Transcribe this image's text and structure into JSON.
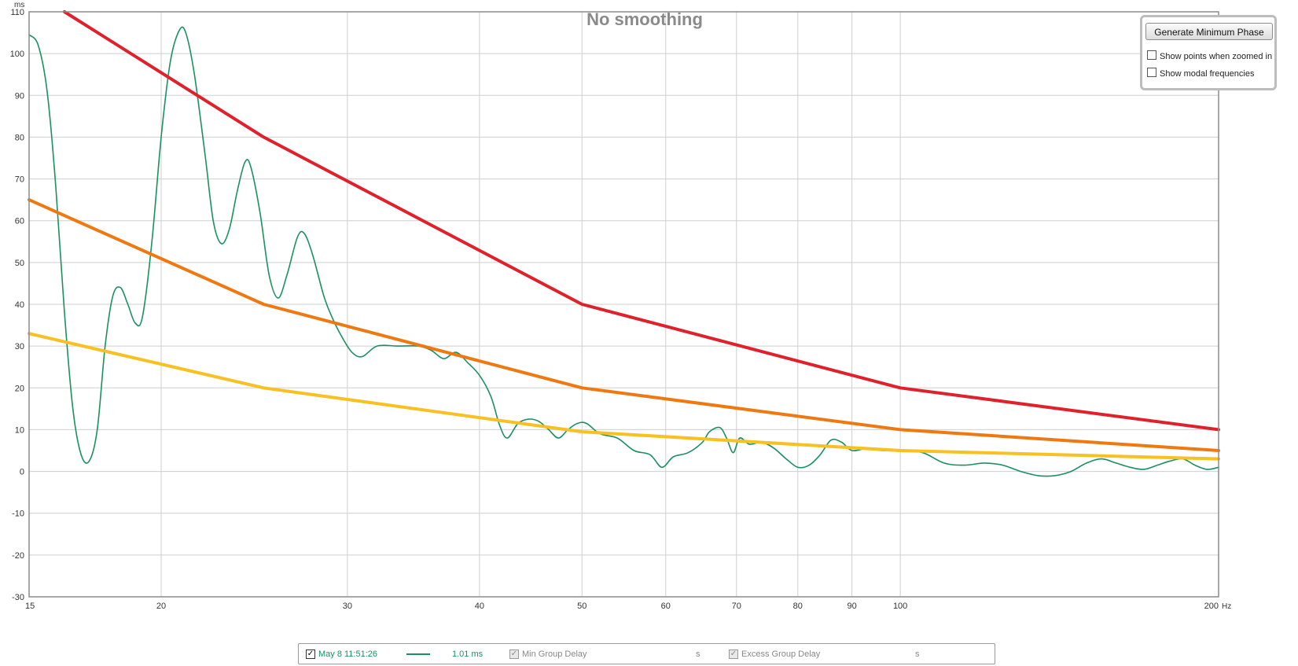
{
  "chart_data": {
    "type": "line",
    "title": "No smoothing",
    "y_unit": "ms",
    "x_unit": "Hz",
    "x_scale": "log",
    "xlim": [
      15,
      200
    ],
    "ylim": [
      -30,
      110
    ],
    "x_ticks": [
      15,
      20,
      30,
      40,
      50,
      60,
      70,
      80,
      90,
      100,
      200
    ],
    "y_ticks": [
      -30,
      -20,
      -10,
      0,
      10,
      20,
      30,
      40,
      50,
      60,
      70,
      80,
      90,
      100,
      110
    ],
    "grid": true,
    "series": [
      {
        "name": "May 8 11:51:26",
        "role": "group delay",
        "color": "#1a9160",
        "points": [
          [
            15,
            104.5
          ],
          [
            15.3,
            102
          ],
          [
            15.6,
            91
          ],
          [
            15.9,
            68
          ],
          [
            16.2,
            38
          ],
          [
            16.5,
            15
          ],
          [
            16.8,
            4
          ],
          [
            17.1,
            2.5
          ],
          [
            17.4,
            10
          ],
          [
            17.7,
            30
          ],
          [
            18.0,
            42
          ],
          [
            18.3,
            44
          ],
          [
            18.6,
            40
          ],
          [
            18.9,
            35.5
          ],
          [
            19.2,
            37
          ],
          [
            19.6,
            55
          ],
          [
            20.0,
            80
          ],
          [
            20.4,
            98
          ],
          [
            20.8,
            105.5
          ],
          [
            21.1,
            105
          ],
          [
            21.5,
            95
          ],
          [
            22.0,
            76
          ],
          [
            22.4,
            60
          ],
          [
            22.8,
            54.5
          ],
          [
            23.2,
            58
          ],
          [
            23.6,
            67
          ],
          [
            24.0,
            74
          ],
          [
            24.3,
            73
          ],
          [
            24.8,
            62
          ],
          [
            25.3,
            47
          ],
          [
            25.8,
            41.5
          ],
          [
            26.3,
            47
          ],
          [
            26.9,
            56
          ],
          [
            27.3,
            57
          ],
          [
            27.8,
            52
          ],
          [
            28.5,
            42
          ],
          [
            29.0,
            37
          ],
          [
            29.6,
            32.5
          ],
          [
            30.3,
            28.5
          ],
          [
            31.0,
            27.5
          ],
          [
            32.0,
            30
          ],
          [
            33.5,
            30
          ],
          [
            35.0,
            30
          ],
          [
            36.0,
            29
          ],
          [
            37.0,
            27
          ],
          [
            38.0,
            28.5
          ],
          [
            39.0,
            26
          ],
          [
            40.0,
            23
          ],
          [
            41.0,
            18
          ],
          [
            41.8,
            11
          ],
          [
            42.5,
            8
          ],
          [
            43.5,
            11.5
          ],
          [
            44.5,
            12.5
          ],
          [
            45.5,
            12
          ],
          [
            46.5,
            10
          ],
          [
            47.5,
            8
          ],
          [
            48.5,
            10
          ],
          [
            49.5,
            11.5
          ],
          [
            50.5,
            11.5
          ],
          [
            52,
            9
          ],
          [
            54,
            8
          ],
          [
            56,
            5
          ],
          [
            58,
            4
          ],
          [
            59.5,
            1
          ],
          [
            61,
            3.5
          ],
          [
            63,
            4.5
          ],
          [
            65,
            7
          ],
          [
            66,
            9.5
          ],
          [
            67.5,
            10.5
          ],
          [
            68.5,
            8
          ],
          [
            69.5,
            4.5
          ],
          [
            70.5,
            8
          ],
          [
            72,
            6.5
          ],
          [
            74,
            7
          ],
          [
            76,
            5.5
          ],
          [
            78,
            3
          ],
          [
            80,
            1
          ],
          [
            82,
            1.5
          ],
          [
            84,
            4
          ],
          [
            86,
            7.5
          ],
          [
            88,
            7
          ],
          [
            90,
            5
          ],
          [
            93,
            5.5
          ],
          [
            96,
            5
          ],
          [
            100,
            5
          ],
          [
            105,
            4.5
          ],
          [
            110,
            2
          ],
          [
            115,
            1.5
          ],
          [
            120,
            2
          ],
          [
            125,
            1.5
          ],
          [
            130,
            0
          ],
          [
            135,
            -1
          ],
          [
            140,
            -1
          ],
          [
            145,
            0
          ],
          [
            150,
            2
          ],
          [
            155,
            3
          ],
          [
            160,
            2
          ],
          [
            165,
            1
          ],
          [
            170,
            0.5
          ],
          [
            175,
            1.5
          ],
          [
            180,
            2.5
          ],
          [
            185,
            3
          ],
          [
            190,
            1.5
          ],
          [
            195,
            0.5
          ],
          [
            200,
            1
          ]
        ]
      },
      {
        "name": "",
        "role": "red limit",
        "color": "#e0202a",
        "points": [
          [
            16.2,
            110
          ],
          [
            25,
            80
          ],
          [
            50,
            40
          ],
          [
            100,
            20
          ],
          [
            200,
            10
          ]
        ]
      },
      {
        "name": "",
        "role": "orange limit",
        "color": "#f07810",
        "points": [
          [
            15,
            65
          ],
          [
            25,
            40
          ],
          [
            50,
            20
          ],
          [
            100,
            10
          ],
          [
            200,
            5
          ]
        ]
      },
      {
        "name": "",
        "role": "yellow limit",
        "color": "#f8c020",
        "points": [
          [
            15,
            33
          ],
          [
            25,
            20
          ],
          [
            50,
            9.5
          ],
          [
            100,
            5
          ],
          [
            200,
            3
          ]
        ]
      }
    ]
  },
  "panel": {
    "generate_button": "Generate Minimum Phase",
    "option_points": "Show points when zoomed in",
    "option_modal": "Show modal frequencies"
  },
  "legend": {
    "measurement_label": "May 8 11:51:26",
    "measurement_value": "1.01 ms",
    "min_group_delay_label": "Min Group Delay",
    "min_group_delay_value": "s",
    "excess_group_delay_label": "Excess Group Delay",
    "excess_group_delay_value": "s",
    "measurement_color": "#1a9160"
  }
}
